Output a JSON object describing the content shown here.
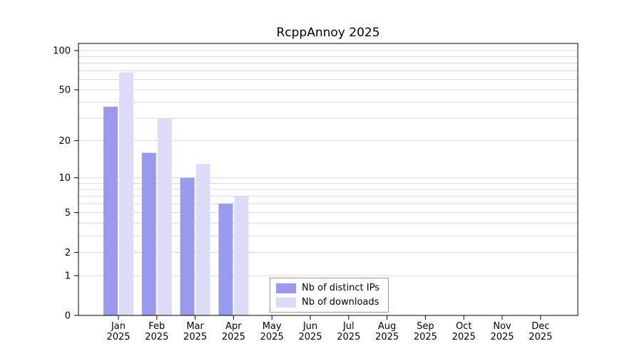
{
  "title": "RcppAnnoy 2025",
  "chart_data": {
    "type": "bar",
    "scale": "log1p",
    "title": "RcppAnnoy 2025",
    "categories": [
      "Jan",
      "Feb",
      "Mar",
      "Apr",
      "May",
      "Jun",
      "Jul",
      "Aug",
      "Sep",
      "Oct",
      "Nov",
      "Dec"
    ],
    "year_label": "2025",
    "series": [
      {
        "name": "Nb of distinct IPs",
        "color": "#9999ee",
        "values": [
          37,
          16,
          10,
          6,
          null,
          null,
          null,
          null,
          null,
          null,
          null,
          null
        ]
      },
      {
        "name": "Nb of downloads",
        "color": "#dcdcf8",
        "values": [
          68,
          30,
          13,
          7,
          null,
          null,
          null,
          null,
          null,
          null,
          null,
          null
        ]
      }
    ],
    "y_ticks": [
      0,
      1,
      2,
      5,
      10,
      20,
      50,
      100
    ],
    "grid_values": [
      1,
      2,
      3,
      4,
      5,
      6,
      7,
      8,
      9,
      10,
      20,
      30,
      40,
      50,
      60,
      70,
      80,
      90,
      100
    ],
    "ylim": [
      0,
      100
    ],
    "grid_color": "#d9d9d9",
    "axis_color": "#000000",
    "legend_position": "inside-bottom-center"
  }
}
